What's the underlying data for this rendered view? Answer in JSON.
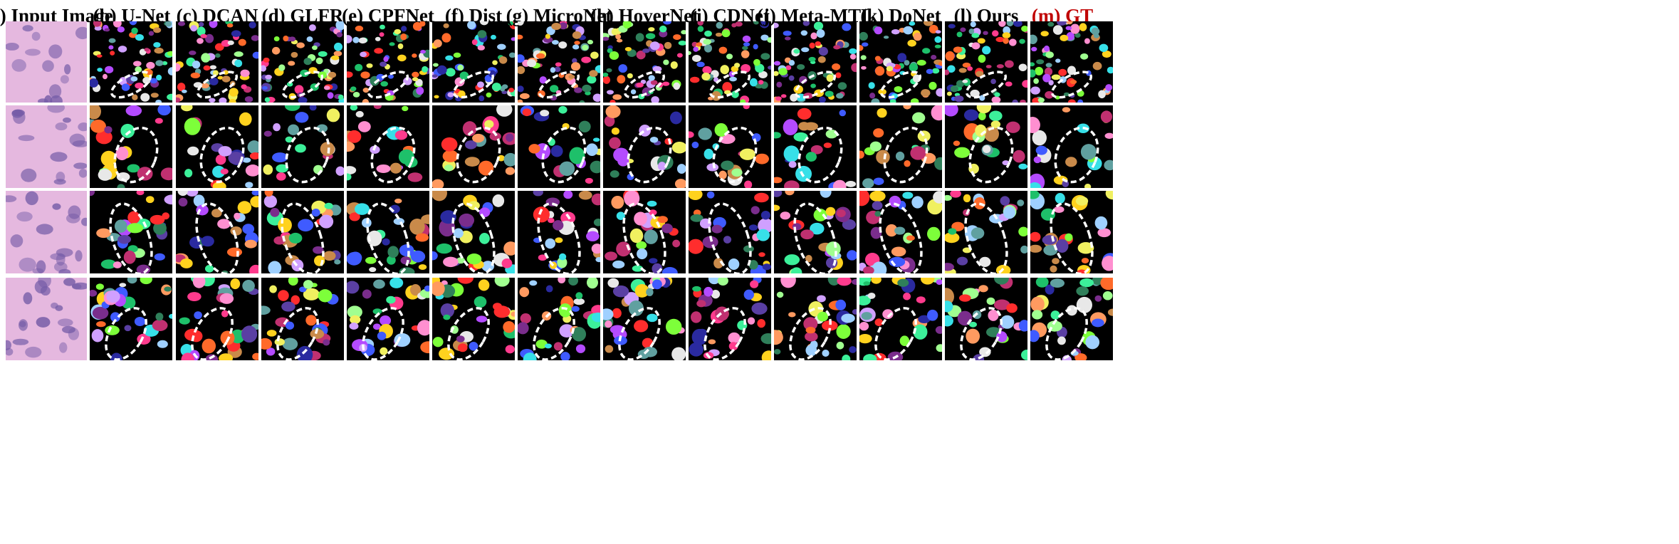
{
  "columns": [
    {
      "label": "(a) Input Image",
      "kind": "input"
    },
    {
      "label": "(b) U-Net",
      "kind": "seg"
    },
    {
      "label": "(c) DCAN",
      "kind": "seg"
    },
    {
      "label": "(d) GLFR",
      "kind": "seg"
    },
    {
      "label": "(e) CPFNet",
      "kind": "seg"
    },
    {
      "label": "(f) Dist",
      "kind": "seg"
    },
    {
      "label": "(g) MicroNet",
      "kind": "seg"
    },
    {
      "label": "(h) HoverNet",
      "kind": "seg"
    },
    {
      "label": "(i) CDNet",
      "kind": "seg"
    },
    {
      "label": "(j) Meta-MTL",
      "kind": "seg"
    },
    {
      "label": "(k) DoNet",
      "kind": "seg"
    },
    {
      "label": "(l) Ours",
      "kind": "seg"
    },
    {
      "label": "(m) GT",
      "kind": "gt"
    }
  ],
  "rows": 4,
  "colors": {
    "title": "#000000",
    "gt_title": "#c00000",
    "highlight_ellipse": "#ffffff",
    "segmentation_background": "#000000",
    "he_stain_background": "#e3b2dd",
    "he_stain_nucleus": "#6a4fa0"
  }
}
